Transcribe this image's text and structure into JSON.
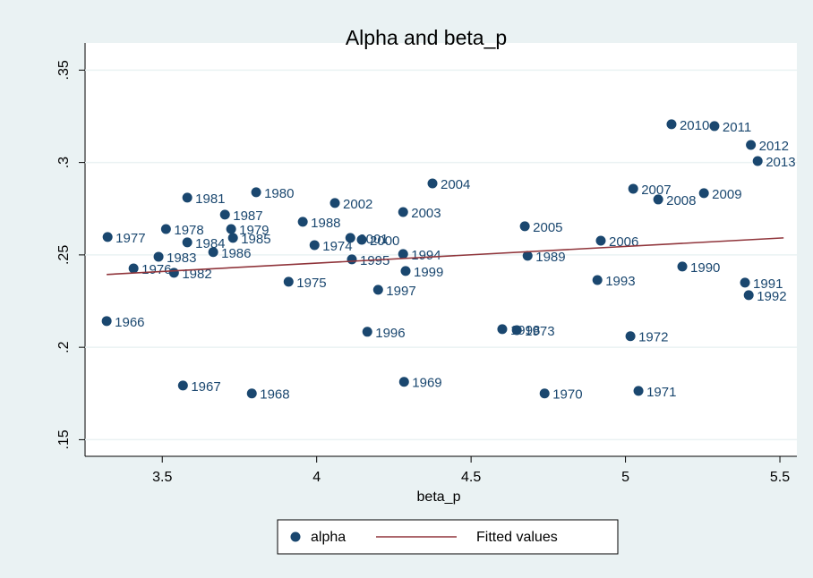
{
  "chart_data": {
    "type": "scatter",
    "title": "Alpha and beta_p",
    "x_label": "beta_p",
    "xlim": [
      3.25,
      5.555
    ],
    "ylim": [
      0.141,
      0.3647
    ],
    "xticks": [
      3.5,
      4,
      4.5,
      5,
      5.5
    ],
    "yticks": [
      {
        "value": 0.15,
        "label": ".15"
      },
      {
        "value": 0.2,
        "label": ".2"
      },
      {
        "value": 0.25,
        "label": ".25"
      },
      {
        "value": 0.3,
        "label": ".3"
      },
      {
        "value": 0.35,
        "label": ".35"
      }
    ],
    "grid": true,
    "legend_position": "bottom",
    "series": [
      {
        "name": "alpha",
        "color": "#1a476f",
        "mode": "markers",
        "labels": [
          "1966",
          "1967",
          "1968",
          "1969",
          "1970",
          "1971",
          "1972",
          "1973",
          "1974",
          "1975",
          "1976",
          "1977",
          "1978",
          "1979",
          "1980",
          "1981",
          "1982",
          "1983",
          "1984",
          "1985",
          "1986",
          "1987",
          "1988",
          "1989",
          "1990",
          "1991",
          "1992",
          "1993",
          "1994",
          "1995",
          "1996",
          "1997",
          "1998",
          "1999",
          "2000",
          "2001",
          "2002",
          "2003",
          "2004",
          "2005",
          "2006",
          "2007",
          "2008",
          "2009",
          "2010",
          "2011",
          "2012",
          "2013"
        ],
        "x": [
          3.32,
          3.567,
          3.79,
          4.283,
          4.738,
          5.042,
          5.016,
          4.648,
          3.993,
          3.909,
          3.407,
          3.323,
          3.512,
          3.723,
          3.804,
          3.581,
          3.538,
          3.488,
          3.581,
          3.729,
          3.665,
          3.703,
          3.955,
          4.683,
          5.184,
          5.387,
          5.399,
          4.909,
          4.28,
          4.114,
          4.164,
          4.199,
          4.601,
          4.288,
          4.146,
          4.109,
          4.059,
          4.28,
          4.375,
          4.674,
          4.92,
          5.025,
          5.106,
          5.254,
          5.149,
          5.288,
          5.406,
          5.428
        ],
        "values": [
          0.2142,
          0.1793,
          0.175,
          0.1813,
          0.175,
          0.1764,
          0.206,
          0.2093,
          0.2553,
          0.2355,
          0.2427,
          0.2597,
          0.264,
          0.264,
          0.2839,
          0.281,
          0.2403,
          0.249,
          0.2568,
          0.2592,
          0.2515,
          0.2718,
          0.2679,
          0.2495,
          0.2437,
          0.235,
          0.2282,
          0.2364,
          0.2505,
          0.2476,
          0.2084,
          0.2311,
          0.2098,
          0.2413,
          0.2582,
          0.2592,
          0.2781,
          0.2732,
          0.2887,
          0.2655,
          0.2577,
          0.2858,
          0.28,
          0.2834,
          0.3207,
          0.3197,
          0.3095,
          0.3008
        ]
      },
      {
        "name": "Fitted values",
        "color": "#90353b",
        "mode": "line",
        "x": [
          3.32,
          5.512
        ],
        "values": [
          0.2394,
          0.2592
        ]
      }
    ]
  }
}
